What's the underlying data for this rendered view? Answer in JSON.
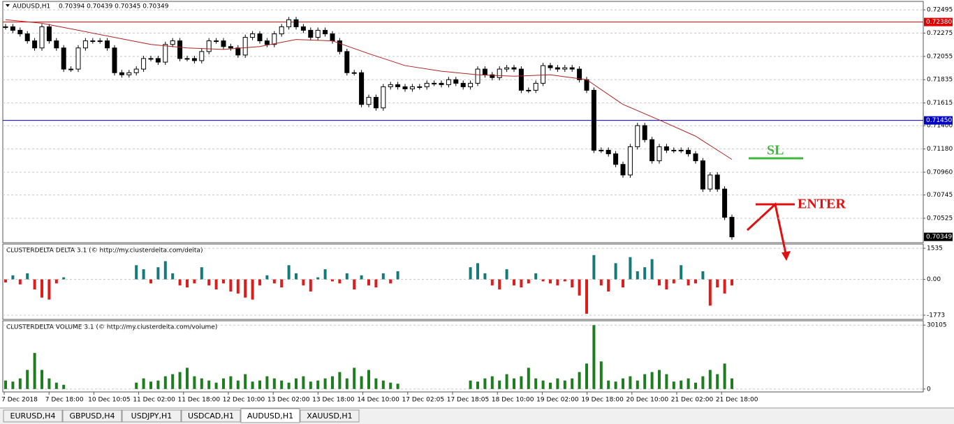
{
  "header": {
    "symbol": "AUDUSD,H1",
    "ohlc": "0.70394 0.70439 0.70345 0.70349"
  },
  "price_axis": {
    "ylim": [
      0.70294,
      0.72575
    ],
    "ticks": [
      {
        "value": 0.72495,
        "label": "0.72495"
      },
      {
        "value": 0.72275,
        "label": "0.72275"
      },
      {
        "value": 0.72055,
        "label": "0.72055"
      },
      {
        "value": 0.71835,
        "label": "0.71835"
      },
      {
        "value": 0.71615,
        "label": "0.71615"
      },
      {
        "value": 0.714,
        "label": "0.71400"
      },
      {
        "value": 0.7118,
        "label": "0.71180"
      },
      {
        "value": 0.7096,
        "label": "0.70960"
      },
      {
        "value": 0.70745,
        "label": "0.70745"
      },
      {
        "value": 0.70525,
        "label": "0.70525"
      }
    ]
  },
  "levels": [
    {
      "value": 0.7238,
      "label": "0.72380",
      "color": "#e00000"
    },
    {
      "value": 0.7145,
      "label": "0.71450",
      "color": "#0000c8"
    },
    {
      "value": 0.70349,
      "label": "0.70349",
      "color": "#000000"
    }
  ],
  "candles": [
    0.72335,
    0.72302,
    0.72268,
    0.72202,
    0.72135,
    0.72335,
    0.72202,
    0.72135,
    0.71935,
    0.71935,
    0.72135,
    0.72202,
    0.72202,
    0.72202,
    0.72135,
    0.71901,
    0.71881,
    0.71901,
    0.71935,
    0.72035,
    0.72035,
    0.72001,
    0.72168,
    0.72202,
    0.72035,
    0.72035,
    0.72015,
    0.72101,
    0.72202,
    0.72202,
    0.72148,
    0.72135,
    0.72068,
    0.72235,
    0.72268,
    0.72202,
    0.72168,
    0.72268,
    0.72335,
    0.72402,
    0.72335,
    0.72302,
    0.72235,
    0.72302,
    0.72268,
    0.72202,
    0.72101,
    0.71901,
    0.71901,
    0.71601,
    0.71668,
    0.71568,
    0.71768,
    0.71788,
    0.71768,
    0.71748,
    0.71768,
    0.71768,
    0.71801,
    0.71801,
    0.71788,
    0.71835,
    0.71801,
    0.71768,
    0.71801,
    0.71935,
    0.71881,
    0.71855,
    0.71935,
    0.71948,
    0.71935,
    0.71735,
    0.71735,
    0.71801,
    0.71968,
    0.71948,
    0.71935,
    0.71948,
    0.71935,
    0.71835,
    0.71735,
    0.71168,
    0.71168,
    0.71134,
    0.71034,
    0.70934,
    0.71201,
    0.71401,
    0.71268,
    0.71068,
    0.71201,
    0.71168,
    0.71168,
    0.71168,
    0.71134,
    0.71068,
    0.70801,
    0.70934,
    0.70801,
    0.70534,
    0.70349
  ],
  "ma": {
    "color": "#b22222",
    "values": [
      0.72402,
      0.72368,
      0.72302,
      0.72235,
      0.72168,
      0.72135,
      0.72121,
      0.72148,
      0.72215,
      0.72202,
      0.72081,
      0.71968,
      0.71915,
      0.71881,
      0.71868,
      0.71881,
      0.71835,
      0.71601,
      0.71454,
      0.71301,
      0.71081
    ]
  },
  "delta": {
    "title": "CLUSTERDELTA DELTA 3.1 (© http://my.clusterdelta.com/delta)",
    "ylim": [
      -1980,
      1745
    ],
    "ticks": [
      1535,
      {
        "value": 0,
        "label": "0.00"
      },
      -1773
    ],
    "up_color": "#167a7a",
    "down_color": "#dd1c1c",
    "values": [
      -150,
      200,
      -250,
      300,
      -500,
      -900,
      -1000,
      -200,
      100,
      null,
      null,
      null,
      null,
      null,
      null,
      null,
      null,
      null,
      700,
      500,
      -200,
      600,
      900,
      300,
      -300,
      -400,
      -200,
      600,
      -300,
      -500,
      -200,
      -600,
      -700,
      -900,
      -1000,
      -300,
      200,
      -200,
      -400,
      700,
      300,
      -300,
      -600,
      100,
      500,
      -100,
      -200,
      300,
      -500,
      200,
      -300,
      -400,
      300,
      -200,
      400,
      null,
      null,
      null,
      null,
      null,
      null,
      null,
      null,
      null,
      600,
      800,
      300,
      -300,
      -500,
      500,
      -300,
      -400,
      -200,
      300,
      -100,
      -200,
      -300,
      -100,
      -400,
      -800,
      -1700,
      1200,
      -300,
      -600,
      800,
      -400,
      1100,
      400,
      600,
      1000,
      -300,
      -500,
      -200,
      700,
      -300,
      -200,
      400,
      -1300,
      -400,
      -700,
      -300
    ]
  },
  "volume": {
    "title": "CLUSTERDELTA VOLUME 3.1 (© http://my.clusterdelta.com/volume)",
    "ylim": [
      -1368,
      32157
    ],
    "ticks": [
      30105,
      0
    ],
    "color": "#1e7d1e",
    "values": [
      4000,
      3500,
      5000,
      9000,
      17000,
      9000,
      5000,
      3000,
      2000,
      null,
      null,
      null,
      null,
      null,
      null,
      null,
      null,
      null,
      3000,
      5000,
      3500,
      4000,
      6000,
      7000,
      8000,
      10000,
      6000,
      5000,
      4000,
      3000,
      5000,
      6000,
      4000,
      7000,
      3500,
      4000,
      6000,
      5000,
      4000,
      3000,
      5000,
      6000,
      3500,
      4000,
      5000,
      6000,
      8000,
      5000,
      10000,
      6000,
      9000,
      5000,
      4000,
      3000,
      2500,
      null,
      null,
      null,
      null,
      null,
      null,
      null,
      null,
      null,
      4000,
      3500,
      5000,
      6000,
      4000,
      7000,
      5000,
      6000,
      10000,
      5000,
      4000,
      3000,
      5000,
      4000,
      5000,
      8000,
      12000,
      30105,
      13000,
      4000,
      3500,
      5000,
      6000,
      4000,
      7000,
      8000,
      9000,
      7000,
      3500,
      4000,
      5000,
      3000,
      6000,
      9000,
      7000,
      12000,
      5000
    ]
  },
  "time_labels": [
    "7 Dec 2018",
    "7 Dec 18:00",
    "10 Dec 10:05",
    "11 Dec 02:00",
    "11 Dec 18:00",
    "12 Dec 10:00",
    "13 Dec 02:00",
    "13 Dec 18:00",
    "14 Dec 10:00",
    "17 Dec 02:05",
    "17 Dec 18:05",
    "18 Dec 10:00",
    "19 Dec 02:00",
    "19 Dec 18:00",
    "20 Dec 10:00",
    "21 Dec 02:00",
    "21 Dec 18:00"
  ],
  "annotations": {
    "sl": "SL",
    "enter": "ENTER"
  },
  "tabs": [
    "EURUSD,H4",
    "GBPUSD,H4",
    "USDJPY,H1",
    "USDCAD,H1",
    "AUDUSD,H1",
    "XAUUSD,H1"
  ],
  "active_tab": 4
}
